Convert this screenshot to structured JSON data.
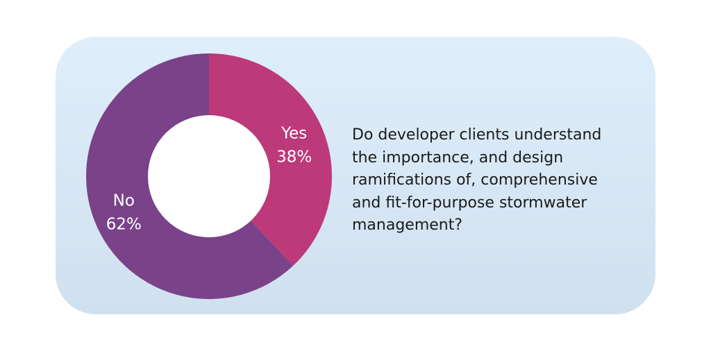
{
  "chart_data": {
    "type": "pie",
    "variant": "donut",
    "slices": [
      {
        "label": "Yes",
        "percent_label": "38%",
        "value": 38,
        "color": "#bc3a79"
      },
      {
        "label": "No",
        "percent_label": "62%",
        "value": 62,
        "color": "#7a4289"
      }
    ]
  },
  "question": {
    "lines": [
      "Do developer clients understand",
      "the importance, and design",
      "ramifications of, comprehensive",
      "and fit-for-purpose stormwater",
      "management?"
    ]
  },
  "colors": {
    "panel_background": "#d8e8f6",
    "hole": "#ffffff",
    "label_text": "#ffffff",
    "question_text": "#1a1a1a"
  }
}
